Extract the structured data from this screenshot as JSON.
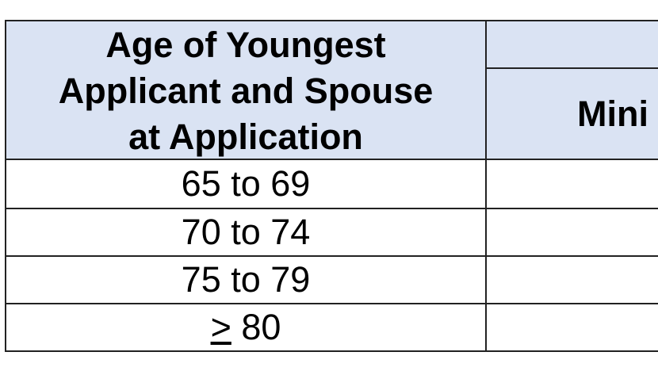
{
  "table": {
    "header": {
      "age": [
        "Age of Youngest",
        "Applicant and Spouse",
        "at Application"
      ],
      "second": "Mini"
    },
    "rows": [
      {
        "age": "65 to 69"
      },
      {
        "age": "70 to 74"
      },
      {
        "age": "75 to 79"
      },
      {
        "age_prefix": ">",
        "age": "80"
      }
    ]
  }
}
